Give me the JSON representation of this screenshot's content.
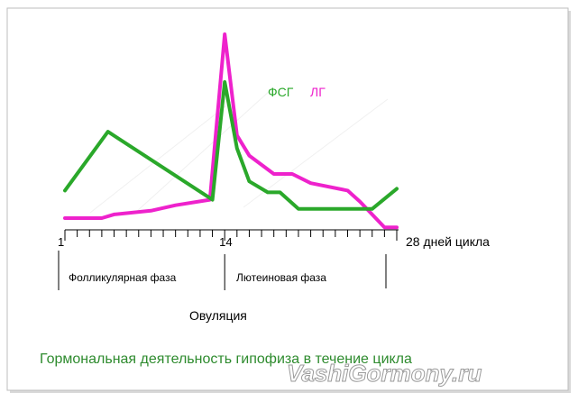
{
  "chart_data": {
    "type": "line",
    "x": [
      1,
      2,
      3,
      4,
      5,
      6,
      7,
      8,
      9,
      10,
      11,
      12,
      13,
      14,
      15,
      16,
      17,
      18,
      19,
      20,
      21,
      22,
      23,
      24,
      25,
      26,
      27,
      28
    ],
    "xlim": [
      1,
      28
    ],
    "ylim": [
      0,
      100
    ],
    "series": [
      {
        "name": "ФСГ",
        "color": "#2aa82a",
        "points": [
          [
            1,
            15
          ],
          [
            4.5,
            47
          ],
          [
            13,
            10
          ],
          [
            14,
            74
          ],
          [
            15,
            38
          ],
          [
            16,
            20
          ],
          [
            17.5,
            14
          ],
          [
            18.5,
            14
          ],
          [
            20,
            5
          ],
          [
            26,
            5
          ],
          [
            28,
            16
          ]
        ]
      },
      {
        "name": "ЛГ",
        "color": "#ee22cc",
        "points": [
          [
            1,
            0
          ],
          [
            4,
            0
          ],
          [
            5,
            2
          ],
          [
            8,
            4
          ],
          [
            10,
            7
          ],
          [
            12.8,
            10
          ],
          [
            14,
            100
          ],
          [
            15,
            45
          ],
          [
            16,
            34
          ],
          [
            18,
            24
          ],
          [
            19.5,
            24
          ],
          [
            21,
            19
          ],
          [
            24,
            15
          ],
          [
            25,
            9
          ],
          [
            27,
            -5
          ],
          [
            28,
            -5
          ]
        ]
      }
    ],
    "x_tick_labels": [
      {
        "x": 1,
        "label": "1"
      },
      {
        "x": 14,
        "label": "14"
      }
    ],
    "x_end_label": "28 дней цикла",
    "legend": {
      "fsh": "ФСГ",
      "lh": "ЛГ"
    },
    "phases": [
      {
        "label": "Фолликулярная фаза",
        "from": 1,
        "to": 14
      },
      {
        "label": "Лютеиновая фаза",
        "from": 14,
        "to": 28
      }
    ],
    "annotation": "Овуляция",
    "title": "Гормональная деятельность гипофиза в течение цикла",
    "watermark": "VashiGormony.ru"
  }
}
